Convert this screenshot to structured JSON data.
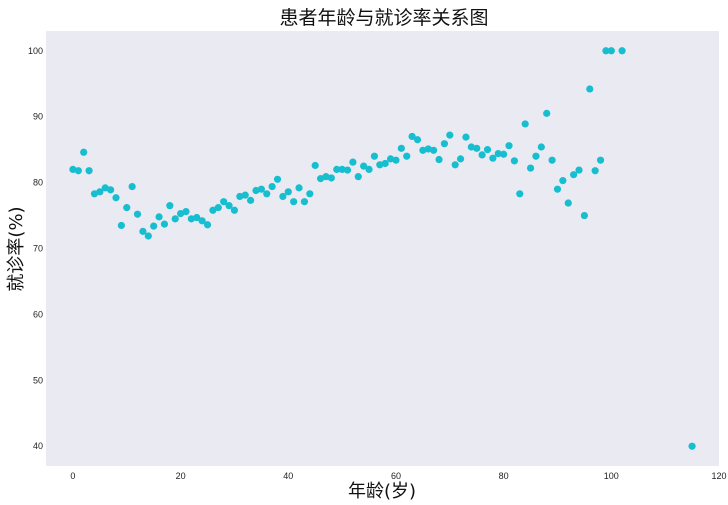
{
  "chart_data": {
    "type": "scatter",
    "title": "患者年龄与就诊率关系图",
    "xlabel": "年龄(岁)",
    "ylabel": "就诊率(%)",
    "xlim": [
      -5,
      120
    ],
    "ylim": [
      37,
      103
    ],
    "xticks": [
      0,
      20,
      40,
      60,
      80,
      100,
      120
    ],
    "yticks": [
      40,
      50,
      60,
      70,
      80,
      90,
      100
    ],
    "grid": false,
    "legend": "none",
    "colors": {
      "background": "#eaeaf2",
      "point": "#17becf"
    },
    "points": [
      [
        0,
        82.0
      ],
      [
        1,
        81.8
      ],
      [
        2,
        84.6
      ],
      [
        3,
        81.8
      ],
      [
        4,
        78.3
      ],
      [
        5,
        78.6
      ],
      [
        6,
        79.2
      ],
      [
        7,
        78.9
      ],
      [
        8,
        77.7
      ],
      [
        9,
        73.5
      ],
      [
        10,
        76.2
      ],
      [
        11,
        79.4
      ],
      [
        12,
        75.2
      ],
      [
        13,
        72.6
      ],
      [
        14,
        71.9
      ],
      [
        15,
        73.4
      ],
      [
        16,
        74.8
      ],
      [
        17,
        73.7
      ],
      [
        18,
        76.5
      ],
      [
        19,
        74.5
      ],
      [
        20,
        75.3
      ],
      [
        21,
        75.6
      ],
      [
        22,
        74.5
      ],
      [
        23,
        74.7
      ],
      [
        24,
        74.2
      ],
      [
        25,
        73.6
      ],
      [
        26,
        75.8
      ],
      [
        27,
        76.2
      ],
      [
        28,
        77.1
      ],
      [
        29,
        76.5
      ],
      [
        30,
        75.8
      ],
      [
        31,
        77.9
      ],
      [
        32,
        78.1
      ],
      [
        33,
        77.3
      ],
      [
        34,
        78.8
      ],
      [
        35,
        79.0
      ],
      [
        36,
        78.3
      ],
      [
        37,
        79.4
      ],
      [
        38,
        80.5
      ],
      [
        39,
        77.9
      ],
      [
        40,
        78.6
      ],
      [
        41,
        77.1
      ],
      [
        42,
        79.2
      ],
      [
        43,
        77.1
      ],
      [
        44,
        78.3
      ],
      [
        45,
        82.6
      ],
      [
        46,
        80.6
      ],
      [
        47,
        80.9
      ],
      [
        48,
        80.7
      ],
      [
        49,
        82.0
      ],
      [
        50,
        82.0
      ],
      [
        51,
        81.9
      ],
      [
        52,
        83.1
      ],
      [
        53,
        80.9
      ],
      [
        54,
        82.5
      ],
      [
        55,
        82.0
      ],
      [
        56,
        84.0
      ],
      [
        57,
        82.7
      ],
      [
        58,
        82.9
      ],
      [
        59,
        83.6
      ],
      [
        60,
        83.4
      ],
      [
        61,
        85.2
      ],
      [
        62,
        84.0
      ],
      [
        63,
        87.0
      ],
      [
        64,
        86.5
      ],
      [
        65,
        84.9
      ],
      [
        66,
        85.1
      ],
      [
        67,
        84.9
      ],
      [
        68,
        83.5
      ],
      [
        69,
        85.9
      ],
      [
        70,
        87.2
      ],
      [
        71,
        82.7
      ],
      [
        72,
        83.6
      ],
      [
        73,
        86.9
      ],
      [
        74,
        85.4
      ],
      [
        75,
        85.2
      ],
      [
        76,
        84.2
      ],
      [
        77,
        85.0
      ],
      [
        78,
        83.7
      ],
      [
        79,
        84.4
      ],
      [
        80,
        84.3
      ],
      [
        81,
        85.6
      ],
      [
        82,
        83.3
      ],
      [
        83,
        78.3
      ],
      [
        84,
        88.9
      ],
      [
        85,
        82.2
      ],
      [
        86,
        84.0
      ],
      [
        87,
        85.4
      ],
      [
        88,
        90.5
      ],
      [
        89,
        83.4
      ],
      [
        90,
        79.0
      ],
      [
        91,
        80.3
      ],
      [
        92,
        76.9
      ],
      [
        93,
        81.2
      ],
      [
        94,
        81.9
      ],
      [
        95,
        75.0
      ],
      [
        96,
        94.2
      ],
      [
        97,
        81.8
      ],
      [
        98,
        83.4
      ],
      [
        99,
        100.0
      ],
      [
        100,
        100.0
      ],
      [
        102,
        100.0
      ],
      [
        115,
        40.0
      ]
    ]
  }
}
